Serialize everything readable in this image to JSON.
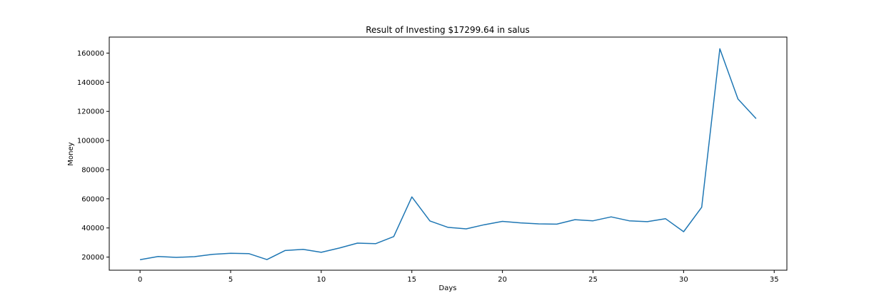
{
  "chart_data": {
    "type": "line",
    "title": "Result of Investing $17299.64 in salus",
    "xlabel": "Days",
    "ylabel": "Money",
    "xlim": [
      -1.7,
      35.7
    ],
    "ylim": [
      11000,
      171000
    ],
    "x_ticks": [
      0,
      5,
      10,
      15,
      20,
      25,
      30,
      35
    ],
    "y_ticks": [
      20000,
      40000,
      60000,
      80000,
      100000,
      120000,
      140000,
      160000
    ],
    "grid": false,
    "line_color": "#1f77b4",
    "series": [
      {
        "x": [
          0,
          1,
          2,
          3,
          4,
          5,
          6,
          7,
          8,
          9,
          10,
          11,
          12,
          13,
          14,
          15,
          16,
          17,
          18,
          19,
          20,
          21,
          22,
          23,
          24,
          25,
          26,
          27,
          28,
          29,
          30,
          31,
          32,
          33,
          34
        ],
        "values": [
          18200,
          20400,
          19800,
          20300,
          21900,
          22600,
          22400,
          18300,
          24500,
          25300,
          23300,
          26200,
          29600,
          29200,
          34100,
          61300,
          44800,
          40400,
          39400,
          42200,
          44500,
          43500,
          42800,
          42600,
          45700,
          44900,
          47600,
          44900,
          44300,
          46400,
          37400,
          54200,
          163000,
          128500,
          115000
        ]
      }
    ]
  }
}
